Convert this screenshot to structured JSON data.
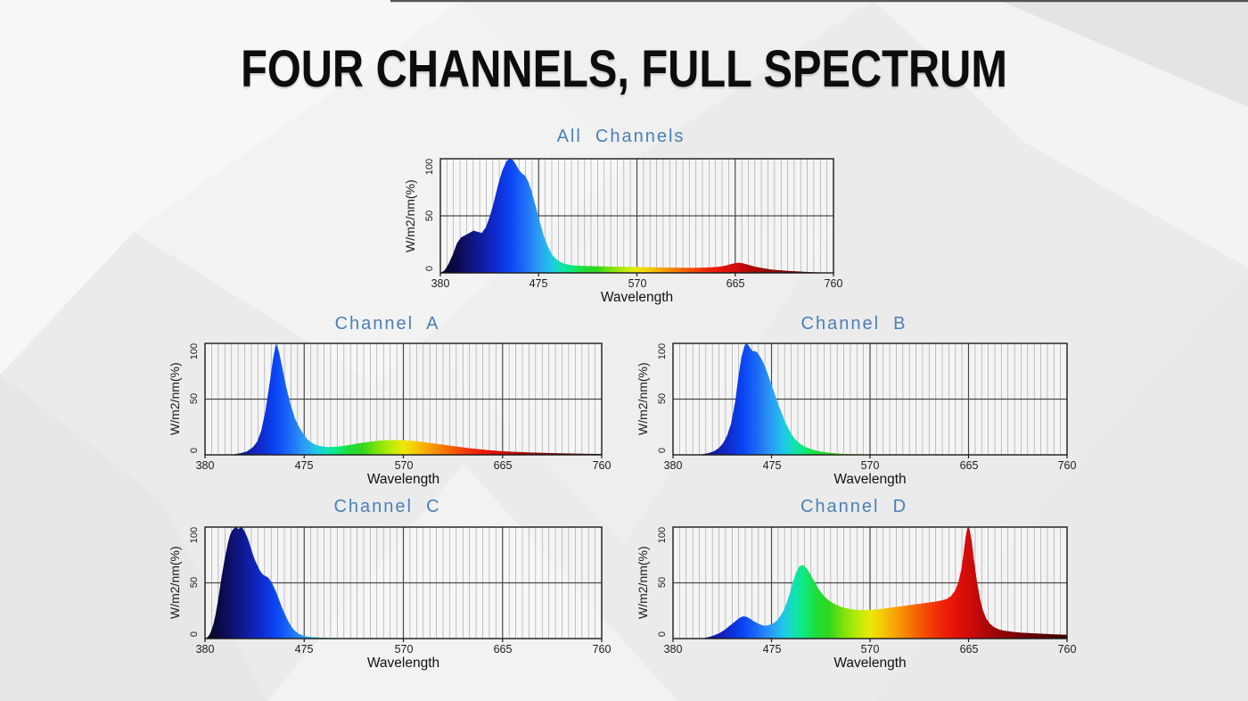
{
  "slide": {
    "title": "FOUR CHANNELS, FULL SPECTRUM"
  },
  "colors": {
    "background": "#ebebeb",
    "slide_title": "#0d0d0d",
    "chart_title": "#4a80b6",
    "grid_minor": "#a8a8a8",
    "grid_major": "#4a4a4a",
    "plot_border": "#1a1a1a",
    "plot_background": "rgba(252,252,252,0.55)"
  },
  "spectrum_stops": [
    [
      380,
      "#05051c"
    ],
    [
      398,
      "#0c0c52"
    ],
    [
      415,
      "#10188f"
    ],
    [
      432,
      "#1028c8"
    ],
    [
      448,
      "#0a46f5"
    ],
    [
      462,
      "#1e6ef8"
    ],
    [
      475,
      "#2b9df5"
    ],
    [
      487,
      "#1fc8e8"
    ],
    [
      497,
      "#12e3b0"
    ],
    [
      507,
      "#0fe87a"
    ],
    [
      518,
      "#1fdd3a"
    ],
    [
      530,
      "#2ed61f"
    ],
    [
      545,
      "#7fe30a"
    ],
    [
      558,
      "#b8ea08"
    ],
    [
      570,
      "#ece908"
    ],
    [
      582,
      "#f5c906"
    ],
    [
      594,
      "#f7a305"
    ],
    [
      606,
      "#f67f05"
    ],
    [
      618,
      "#f45a04"
    ],
    [
      630,
      "#f13a05"
    ],
    [
      642,
      "#ee1f06"
    ],
    [
      655,
      "#e01008"
    ],
    [
      668,
      "#cc0b0b"
    ],
    [
      682,
      "#ad0808"
    ],
    [
      700,
      "#8c0606"
    ],
    [
      725,
      "#660404"
    ],
    [
      760,
      "#3f0202"
    ]
  ],
  "chart_data": [
    {
      "type": "area",
      "title": "All  Channels",
      "xlabel": "Wavelength",
      "ylabel": "W/m2/nm(%)",
      "x_range": [
        380,
        760
      ],
      "ylim": [
        0,
        100
      ],
      "xticks": [
        380,
        475,
        570,
        665,
        760
      ],
      "yticks": [
        0,
        50,
        100
      ],
      "grid": true,
      "points": [
        [
          380,
          0
        ],
        [
          384,
          2
        ],
        [
          388,
          8
        ],
        [
          392,
          16
        ],
        [
          396,
          26
        ],
        [
          400,
          31
        ],
        [
          404,
          33
        ],
        [
          408,
          35
        ],
        [
          412,
          37
        ],
        [
          416,
          36
        ],
        [
          420,
          35
        ],
        [
          424,
          40
        ],
        [
          428,
          50
        ],
        [
          432,
          63
        ],
        [
          436,
          78
        ],
        [
          440,
          90
        ],
        [
          444,
          98
        ],
        [
          447,
          100
        ],
        [
          450,
          99
        ],
        [
          453,
          95
        ],
        [
          456,
          90
        ],
        [
          459,
          87
        ],
        [
          462,
          85
        ],
        [
          465,
          80
        ],
        [
          468,
          72
        ],
        [
          471,
          62
        ],
        [
          474,
          52
        ],
        [
          477,
          42
        ],
        [
          480,
          32
        ],
        [
          484,
          23
        ],
        [
          488,
          16
        ],
        [
          492,
          12
        ],
        [
          496,
          9.5
        ],
        [
          500,
          8
        ],
        [
          505,
          7
        ],
        [
          510,
          6.5
        ],
        [
          520,
          6
        ],
        [
          535,
          5.8
        ],
        [
          550,
          5.5
        ],
        [
          565,
          5.3
        ],
        [
          580,
          5
        ],
        [
          595,
          4.8
        ],
        [
          610,
          4.6
        ],
        [
          625,
          4.5
        ],
        [
          640,
          4.8
        ],
        [
          650,
          5.5
        ],
        [
          656,
          6.5
        ],
        [
          662,
          8
        ],
        [
          668,
          9
        ],
        [
          672,
          8.5
        ],
        [
          678,
          7
        ],
        [
          684,
          5.5
        ],
        [
          690,
          4.5
        ],
        [
          700,
          3
        ],
        [
          712,
          2
        ],
        [
          724,
          1.3
        ],
        [
          736,
          0.8
        ],
        [
          748,
          0.4
        ],
        [
          760,
          0.2
        ]
      ]
    },
    {
      "type": "area",
      "title": "Channel  A",
      "xlabel": "Wavelength",
      "ylabel": "W/m2/nm(%)",
      "x_range": [
        380,
        760
      ],
      "ylim": [
        0,
        100
      ],
      "xticks": [
        380,
        475,
        570,
        665,
        760
      ],
      "yticks": [
        0,
        50,
        100
      ],
      "grid": true,
      "points": [
        [
          380,
          0
        ],
        [
          400,
          0
        ],
        [
          408,
          0.5
        ],
        [
          414,
          1.5
        ],
        [
          420,
          3
        ],
        [
          426,
          7
        ],
        [
          430,
          12
        ],
        [
          434,
          22
        ],
        [
          438,
          40
        ],
        [
          442,
          65
        ],
        [
          445,
          85
        ],
        [
          448,
          100
        ],
        [
          451,
          92
        ],
        [
          454,
          78
        ],
        [
          458,
          60
        ],
        [
          462,
          45
        ],
        [
          466,
          33
        ],
        [
          470,
          25
        ],
        [
          474,
          19
        ],
        [
          478,
          14
        ],
        [
          482,
          11
        ],
        [
          486,
          9
        ],
        [
          490,
          8
        ],
        [
          495,
          7.2
        ],
        [
          500,
          7
        ],
        [
          508,
          7.5
        ],
        [
          516,
          8.5
        ],
        [
          524,
          9.8
        ],
        [
          532,
          11
        ],
        [
          540,
          12
        ],
        [
          548,
          12.8
        ],
        [
          556,
          13.2
        ],
        [
          564,
          13.3
        ],
        [
          572,
          13
        ],
        [
          580,
          12.4
        ],
        [
          588,
          11.6
        ],
        [
          596,
          10.6
        ],
        [
          604,
          9.6
        ],
        [
          612,
          8.6
        ],
        [
          620,
          7.6
        ],
        [
          628,
          6.6
        ],
        [
          636,
          5.7
        ],
        [
          644,
          4.9
        ],
        [
          652,
          4.2
        ],
        [
          660,
          3.6
        ],
        [
          668,
          3.1
        ],
        [
          676,
          2.7
        ],
        [
          684,
          2.4
        ],
        [
          692,
          2.1
        ],
        [
          700,
          1.9
        ],
        [
          712,
          1.6
        ],
        [
          724,
          1.3
        ],
        [
          736,
          1.1
        ],
        [
          748,
          0.9
        ],
        [
          760,
          0.8
        ]
      ]
    },
    {
      "type": "area",
      "title": "Channel  B",
      "xlabel": "Wavelength",
      "ylabel": "W/m2/nm(%)",
      "x_range": [
        380,
        760
      ],
      "ylim": [
        0,
        100
      ],
      "xticks": [
        380,
        475,
        570,
        665,
        760
      ],
      "yticks": [
        0,
        50,
        100
      ],
      "grid": true,
      "points": [
        [
          380,
          0
        ],
        [
          402,
          0
        ],
        [
          408,
          0.5
        ],
        [
          414,
          1.5
        ],
        [
          419,
          3
        ],
        [
          424,
          6
        ],
        [
          428,
          10
        ],
        [
          432,
          17
        ],
        [
          436,
          28
        ],
        [
          440,
          48
        ],
        [
          443,
          70
        ],
        [
          446,
          88
        ],
        [
          449,
          98
        ],
        [
          451,
          100
        ],
        [
          453,
          98
        ],
        [
          455,
          95
        ],
        [
          457,
          93
        ],
        [
          459,
          93
        ],
        [
          461,
          92
        ],
        [
          464,
          88
        ],
        [
          467,
          83
        ],
        [
          470,
          76
        ],
        [
          473,
          68
        ],
        [
          476,
          60
        ],
        [
          479,
          52
        ],
        [
          482,
          44
        ],
        [
          485,
          37
        ],
        [
          488,
          30
        ],
        [
          491,
          24
        ],
        [
          494,
          19
        ],
        [
          497,
          15
        ],
        [
          500,
          12
        ],
        [
          504,
          9
        ],
        [
          508,
          7
        ],
        [
          512,
          5.5
        ],
        [
          516,
          4.3
        ],
        [
          520,
          3.4
        ],
        [
          525,
          2.6
        ],
        [
          530,
          2
        ],
        [
          536,
          1.5
        ],
        [
          542,
          1.1
        ],
        [
          548,
          0.8
        ],
        [
          556,
          0.6
        ],
        [
          564,
          0.4
        ],
        [
          572,
          0.3
        ],
        [
          580,
          0.2
        ],
        [
          590,
          0.1
        ],
        [
          600,
          0.05
        ],
        [
          620,
          0
        ],
        [
          760,
          0
        ]
      ]
    },
    {
      "type": "area",
      "title": "Channel  C",
      "xlabel": "Wavelength",
      "ylabel": "W/m2/nm(%)",
      "x_range": [
        380,
        760
      ],
      "ylim": [
        0,
        100
      ],
      "xticks": [
        380,
        475,
        570,
        665,
        760
      ],
      "yticks": [
        0,
        50,
        100
      ],
      "grid": true,
      "points": [
        [
          380,
          0
        ],
        [
          382,
          1
        ],
        [
          384,
          3
        ],
        [
          386,
          7
        ],
        [
          388,
          13
        ],
        [
          390,
          21
        ],
        [
          392,
          32
        ],
        [
          394,
          44
        ],
        [
          396,
          56
        ],
        [
          398,
          67
        ],
        [
          400,
          77
        ],
        [
          402,
          86
        ],
        [
          404,
          93
        ],
        [
          406,
          97
        ],
        [
          408,
          99
        ],
        [
          410,
          100
        ],
        [
          412,
          98
        ],
        [
          414,
          100
        ],
        [
          416,
          99
        ],
        [
          418,
          96
        ],
        [
          420,
          92
        ],
        [
          422,
          87
        ],
        [
          424,
          81
        ],
        [
          426,
          75
        ],
        [
          428,
          70
        ],
        [
          430,
          66
        ],
        [
          432,
          62
        ],
        [
          434,
          59
        ],
        [
          436,
          57
        ],
        [
          438,
          56
        ],
        [
          440,
          55
        ],
        [
          442,
          53
        ],
        [
          444,
          50
        ],
        [
          446,
          46
        ],
        [
          448,
          42
        ],
        [
          450,
          37
        ],
        [
          452,
          32
        ],
        [
          454,
          27
        ],
        [
          456,
          23
        ],
        [
          458,
          19
        ],
        [
          460,
          15
        ],
        [
          462,
          12
        ],
        [
          464,
          9
        ],
        [
          466,
          7
        ],
        [
          468,
          5.5
        ],
        [
          470,
          4.2
        ],
        [
          473,
          3
        ],
        [
          476,
          2.2
        ],
        [
          480,
          1.6
        ],
        [
          485,
          1.2
        ],
        [
          490,
          0.9
        ],
        [
          496,
          0.7
        ],
        [
          504,
          0.5
        ],
        [
          514,
          0.4
        ],
        [
          526,
          0.3
        ],
        [
          540,
          0.25
        ],
        [
          560,
          0.2
        ],
        [
          580,
          0.15
        ],
        [
          600,
          0.1
        ],
        [
          640,
          0.1
        ],
        [
          665,
          0.08
        ],
        [
          700,
          0
        ],
        [
          760,
          0
        ]
      ]
    },
    {
      "type": "area",
      "title": "Channel  D",
      "xlabel": "Wavelength",
      "ylabel": "W/m2/nm(%)",
      "x_range": [
        380,
        760
      ],
      "ylim": [
        0,
        100
      ],
      "xticks": [
        380,
        475,
        570,
        665,
        760
      ],
      "yticks": [
        0,
        50,
        100
      ],
      "grid": true,
      "points": [
        [
          380,
          0
        ],
        [
          405,
          0
        ],
        [
          410,
          0.5
        ],
        [
          415,
          1.5
        ],
        [
          420,
          3
        ],
        [
          425,
          5
        ],
        [
          430,
          8
        ],
        [
          434,
          11
        ],
        [
          438,
          14
        ],
        [
          442,
          17
        ],
        [
          445,
          19
        ],
        [
          448,
          20
        ],
        [
          451,
          19.5
        ],
        [
          454,
          18
        ],
        [
          457,
          16
        ],
        [
          460,
          14.5
        ],
        [
          463,
          13
        ],
        [
          466,
          12
        ],
        [
          469,
          11.5
        ],
        [
          472,
          12
        ],
        [
          475,
          13
        ],
        [
          478,
          14.5
        ],
        [
          481,
          17
        ],
        [
          484,
          21
        ],
        [
          487,
          26
        ],
        [
          490,
          33
        ],
        [
          493,
          42
        ],
        [
          496,
          52
        ],
        [
          499,
          60
        ],
        [
          502,
          65
        ],
        [
          505,
          66
        ],
        [
          508,
          64
        ],
        [
          511,
          60
        ],
        [
          514,
          55
        ],
        [
          517,
          50
        ],
        [
          520,
          45
        ],
        [
          524,
          40
        ],
        [
          528,
          36
        ],
        [
          532,
          33
        ],
        [
          537,
          30.5
        ],
        [
          542,
          28.5
        ],
        [
          548,
          27
        ],
        [
          554,
          26
        ],
        [
          560,
          25.5
        ],
        [
          568,
          25.5
        ],
        [
          576,
          26
        ],
        [
          584,
          27
        ],
        [
          592,
          28
        ],
        [
          600,
          29
        ],
        [
          608,
          30
        ],
        [
          616,
          31
        ],
        [
          624,
          32
        ],
        [
          632,
          33
        ],
        [
          638,
          34
        ],
        [
          644,
          35.5
        ],
        [
          648,
          38
        ],
        [
          652,
          43
        ],
        [
          655,
          50
        ],
        [
          658,
          62
        ],
        [
          660,
          75
        ],
        [
          662,
          90
        ],
        [
          664,
          100
        ],
        [
          666,
          98
        ],
        [
          668,
          88
        ],
        [
          670,
          72
        ],
        [
          673,
          52
        ],
        [
          676,
          36
        ],
        [
          679,
          25
        ],
        [
          682,
          18
        ],
        [
          686,
          13
        ],
        [
          690,
          10
        ],
        [
          695,
          8
        ],
        [
          700,
          7
        ],
        [
          708,
          6
        ],
        [
          716,
          5.3
        ],
        [
          726,
          4.8
        ],
        [
          736,
          4.3
        ],
        [
          748,
          3.8
        ],
        [
          760,
          3.4
        ]
      ]
    }
  ]
}
